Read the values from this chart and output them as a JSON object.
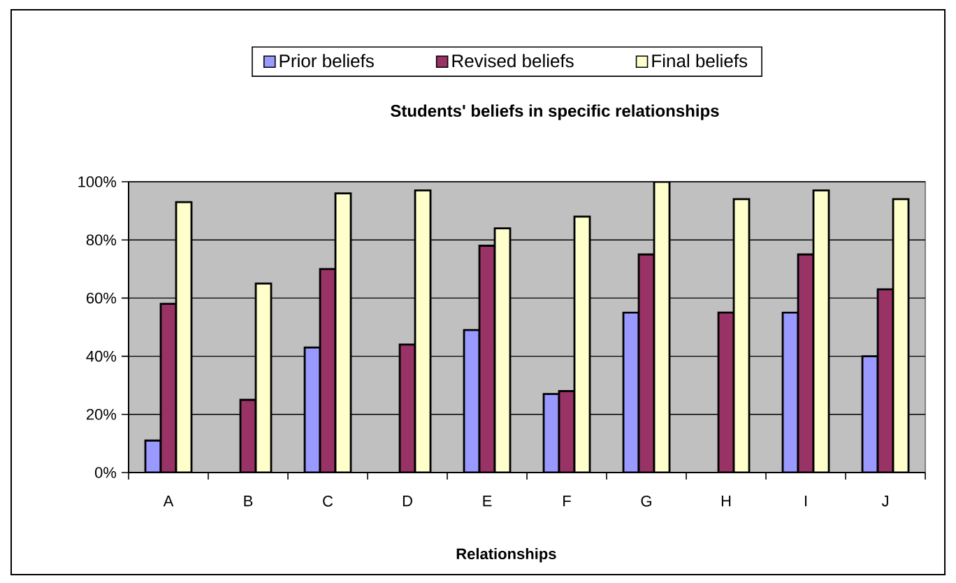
{
  "chart_data": {
    "type": "bar",
    "title": "Students' beliefs in specific relationships",
    "xlabel": "Relationships",
    "categories": [
      "A",
      "B",
      "C",
      "D",
      "E",
      "F",
      "G",
      "H",
      "I",
      "J"
    ],
    "series": [
      {
        "name": "Prior beliefs",
        "color": "#9999ff",
        "values": [
          11,
          null,
          43,
          null,
          49,
          27,
          55,
          null,
          55,
          40
        ]
      },
      {
        "name": "Revised beliefs",
        "color": "#993366",
        "values": [
          58,
          25,
          70,
          44,
          78,
          28,
          75,
          55,
          75,
          63
        ]
      },
      {
        "name": "Final beliefs",
        "color": "#ffffcc",
        "values": [
          93,
          65,
          96,
          97,
          84,
          88,
          100,
          94,
          97,
          94
        ]
      }
    ],
    "ylim": [
      0,
      100
    ],
    "yticks": [
      {
        "value": 0,
        "label": "0%"
      },
      {
        "value": 20,
        "label": "20%"
      },
      {
        "value": 40,
        "label": "40%"
      },
      {
        "value": 60,
        "label": "60%"
      },
      {
        "value": 80,
        "label": "80%"
      },
      {
        "value": 100,
        "label": "100%"
      }
    ],
    "grid": "y",
    "legend": "top"
  }
}
